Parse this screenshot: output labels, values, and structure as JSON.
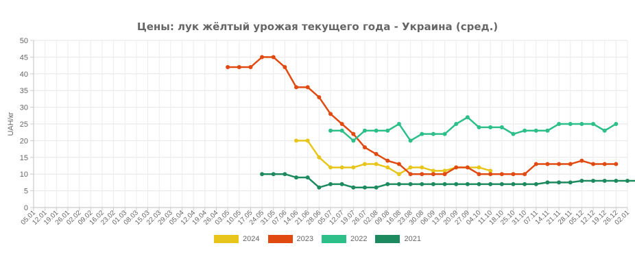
{
  "chart_data": {
    "type": "line",
    "title": "Цены: лук жёлтый урожая текущего года - Украина (сред.)",
    "xlabel": "",
    "ylabel": "UAH/кг",
    "ylim": [
      0,
      50
    ],
    "yticks": [
      0,
      5,
      10,
      15,
      20,
      25,
      30,
      35,
      40,
      45,
      50
    ],
    "grid": true,
    "legend_position": "bottom",
    "categories": [
      "05.01",
      "12.01",
      "19.01",
      "26.01",
      "02.02",
      "09.02",
      "16.02",
      "23.02",
      "01.03",
      "08.03",
      "15.03",
      "22.03",
      "29.03",
      "05.04",
      "12.04",
      "19.04",
      "26.04",
      "03.05",
      "10.05",
      "17.05",
      "24.05",
      "31.05",
      "07.06",
      "14.06",
      "21.06",
      "28.06",
      "05.07",
      "12.07",
      "19.07",
      "26.07",
      "02.08",
      "09.08",
      "16.08",
      "23.08",
      "30.08",
      "06.09",
      "13.09",
      "20.09",
      "27.09",
      "04.10",
      "11.10",
      "18.10",
      "25.10",
      "31.10",
      "07.11",
      "14.11",
      "21.11",
      "28.11",
      "05.12",
      "12.12",
      "19.12",
      "26.12",
      "02.01"
    ],
    "series": [
      {
        "name": "2024",
        "color": "#e8c51a",
        "start_index": 23,
        "values": [
          20,
          20,
          15,
          12,
          12,
          12,
          13,
          13,
          12,
          10,
          12,
          12,
          11,
          11,
          12,
          12,
          12,
          11
        ]
      },
      {
        "name": "2023",
        "color": "#e04a10",
        "start_index": 17,
        "values": [
          42,
          42,
          42,
          45,
          45,
          42,
          36,
          36,
          33,
          28,
          25,
          22,
          18,
          16,
          14,
          13,
          10,
          10,
          10,
          10,
          12,
          12,
          10,
          10,
          10,
          10,
          10,
          13,
          13,
          13,
          13,
          14,
          13,
          13,
          13
        ]
      },
      {
        "name": "2022",
        "color": "#2dbf8a",
        "start_index": 26,
        "values": [
          23,
          23,
          20,
          23,
          23,
          23,
          25,
          20,
          22,
          22,
          22,
          25,
          27,
          24,
          24,
          24,
          22,
          23,
          23,
          23,
          25,
          25,
          25,
          25,
          23,
          25
        ]
      },
      {
        "name": "2021",
        "color": "#1c8a5e",
        "start_index": 20,
        "values": [
          10,
          10,
          10,
          9,
          9,
          6,
          7,
          7,
          6,
          6,
          6,
          7,
          7,
          7,
          7,
          7,
          7,
          7,
          7,
          7,
          7,
          7,
          7,
          7,
          7,
          7.5,
          7.5,
          7.5,
          8,
          8,
          8,
          8,
          8,
          8
        ]
      }
    ]
  },
  "legend": {
    "items": [
      {
        "label": "2024",
        "color": "#e8c51a"
      },
      {
        "label": "2023",
        "color": "#e04a10"
      },
      {
        "label": "2022",
        "color": "#2dbf8a"
      },
      {
        "label": "2021",
        "color": "#1c8a5e"
      }
    ]
  }
}
